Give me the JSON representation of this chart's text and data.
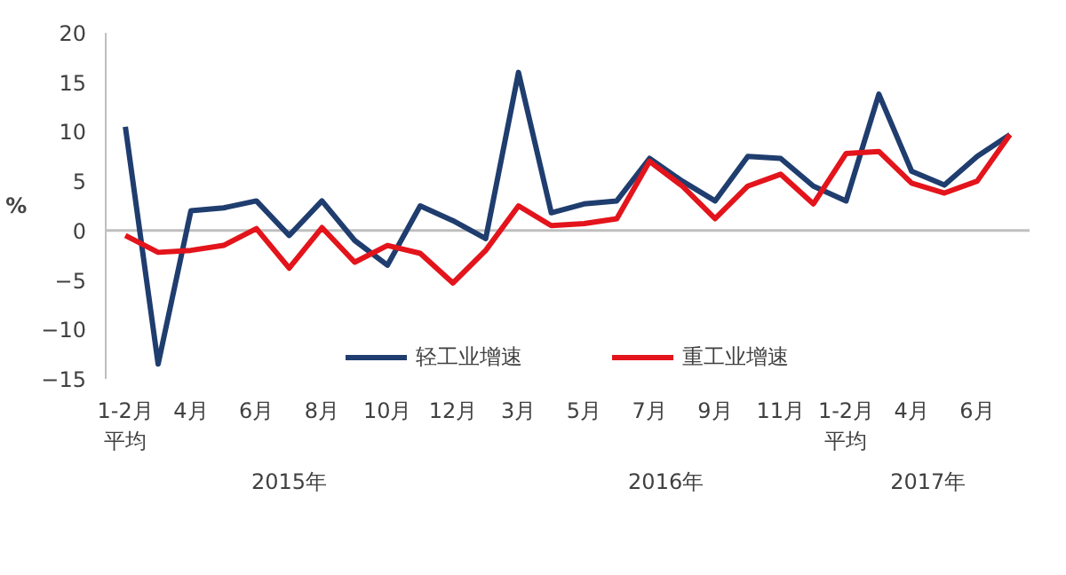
{
  "chart_data": {
    "type": "line",
    "ylabel": "%",
    "categories": [
      "1-2月平均",
      null,
      "4月",
      null,
      "6月",
      null,
      "8月",
      null,
      "10月",
      null,
      "12月",
      null,
      "3月",
      null,
      "5月",
      null,
      "7月",
      null,
      "9月",
      null,
      "11月",
      null,
      "1-2月平均",
      null,
      "4月",
      null,
      "6月",
      null
    ],
    "series": [
      {
        "name": "轻工业增速",
        "color": "#1f3d6e",
        "values": [
          10.5,
          -13.5,
          2,
          2.3,
          3,
          -0.5,
          3,
          -1,
          -3.5,
          2.5,
          1,
          -0.8,
          16,
          1.8,
          2.7,
          3,
          7.3,
          5,
          3,
          7.5,
          7.3,
          4.5,
          3,
          13.8,
          6,
          4.6,
          7.5,
          9.7
        ]
      },
      {
        "name": "重工业增速",
        "color": "#e3141b",
        "values": [
          -0.5,
          -2.2,
          -2,
          -1.5,
          0.2,
          -3.8,
          0.3,
          -3.2,
          -1.5,
          -2.3,
          -5.3,
          -2,
          2.5,
          0.5,
          0.7,
          1.2,
          7,
          4.5,
          1.2,
          4.5,
          5.7,
          2.7,
          7.8,
          8,
          4.8,
          3.8,
          5,
          9.7
        ]
      }
    ],
    "ylim": [
      -15,
      20
    ],
    "yticks": [
      -15,
      -10,
      -5,
      0,
      5,
      10,
      15,
      20
    ],
    "ref_lines": [
      {
        "axis": "y",
        "value": 0,
        "color": "#bfbfbf"
      }
    ],
    "annotations": [
      "2015年",
      "2016年",
      "2017年"
    ],
    "grid": false,
    "legend": "bottom",
    "line_style": "solid",
    "marker": "none"
  }
}
